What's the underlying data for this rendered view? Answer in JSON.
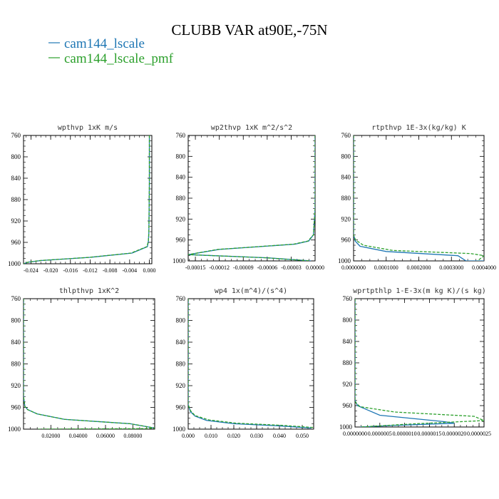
{
  "figure": {
    "title": "CLUBB VAR at90E,-75N"
  },
  "legend": [
    {
      "name": "cam144_lscale",
      "color": "#1f77b4",
      "dash": false
    },
    {
      "name": "cam144_lscale_pmf",
      "color": "#2ca02c",
      "dash": true
    }
  ],
  "chart_data": [
    {
      "type": "line",
      "title": "wpthvp   1xK m/s",
      "xlim": [
        -0.0255,
        0.0005
      ],
      "ylim": [
        760,
        1000
      ],
      "y_inverted": true,
      "xticks": [
        -0.024,
        -0.02,
        -0.016,
        -0.012,
        -0.008,
        -0.004,
        0.0
      ],
      "xtick_labels": [
        "-0.024",
        "-0.020",
        "-0.016",
        "-0.012",
        "-0.008",
        "-0.004",
        "0.000"
      ],
      "yticks": [
        760,
        800,
        840,
        880,
        920,
        960,
        1000
      ],
      "ytick_labels": [
        "760",
        "800",
        "840",
        "880",
        "920",
        "960",
        "1000"
      ],
      "series": [
        {
          "name": "cam144_lscale",
          "x": [
            0.0,
            0.0,
            -0.0001,
            -0.0002,
            -0.0004,
            -0.0035,
            -0.012,
            -0.022,
            -0.0245,
            -0.0255
          ],
          "y": [
            760,
            850,
            940,
            958,
            968,
            980,
            988,
            994,
            997,
            1000
          ]
        },
        {
          "name": "cam144_lscale_pmf",
          "x": [
            0.0,
            0.0,
            -0.0001,
            -0.0002,
            -0.0005,
            -0.0037,
            -0.0122,
            -0.0222,
            -0.0246,
            -0.0255
          ],
          "y": [
            760,
            850,
            940,
            958,
            968,
            980,
            988,
            994,
            997,
            1000
          ]
        }
      ]
    },
    {
      "type": "line",
      "title": "wp2thvp   1xK m^2/s^2",
      "xlim": [
        -0.000159,
        0.0
      ],
      "ylim": [
        760,
        1000
      ],
      "y_inverted": true,
      "xticks": [
        -0.00015,
        -0.00012,
        -9e-05,
        -6e-05,
        -3e-05,
        0.0
      ],
      "xtick_labels": [
        "-0.00015",
        "-0.00012",
        "-0.00009",
        "-0.00006",
        "-0.00003",
        "0.00000"
      ],
      "yticks": [
        760,
        800,
        840,
        880,
        920,
        960,
        1000
      ],
      "ytick_labels": [
        "760",
        "800",
        "840",
        "880",
        "920",
        "960",
        "1000"
      ],
      "series": [
        {
          "name": "cam144_lscale",
          "x": [
            0.0,
            0.0,
            -2e-06,
            -8e-06,
            -2.5e-05,
            -0.00012,
            -0.000159,
            -6e-05,
            -5e-06
          ],
          "y": [
            760,
            900,
            950,
            962,
            968,
            978,
            988,
            994,
            1000
          ]
        },
        {
          "name": "cam144_lscale_pmf",
          "x": [
            0.0,
            0.0,
            -2e-06,
            -9e-06,
            -2.7e-05,
            -0.000122,
            -0.000159,
            -6.2e-05,
            -6e-06
          ],
          "y": [
            760,
            900,
            950,
            962,
            968,
            978,
            988,
            994,
            1000
          ]
        }
      ]
    },
    {
      "type": "line",
      "title": "rtpthvp   1E-3x(kg/kg) K",
      "xlim": [
        0.0,
        0.0004
      ],
      "ylim": [
        760,
        1000
      ],
      "y_inverted": true,
      "xticks": [
        0.0,
        0.0001,
        0.0002,
        0.0003,
        0.0004
      ],
      "xtick_labels": [
        "0.0000000",
        "0.0001000",
        "0.0002000",
        "0.0003000",
        "0.0004000"
      ],
      "yticks": [
        760,
        800,
        840,
        880,
        920,
        960,
        1000
      ],
      "ytick_labels": [
        "760",
        "800",
        "840",
        "880",
        "920",
        "960",
        "1000"
      ],
      "series": [
        {
          "name": "cam144_lscale",
          "x": [
            0.0,
            0.0,
            5e-06,
            2e-05,
            0.0001,
            0.00032,
            0.000345,
            0.0004
          ],
          "y": [
            760,
            950,
            962,
            972,
            982,
            990,
            1000,
            1000
          ]
        },
        {
          "name": "cam144_lscale_pmf",
          "x": [
            0.0,
            0.0,
            6e-06,
            3e-05,
            0.00012,
            0.00036,
            0.0004,
            0.00038
          ],
          "y": [
            760,
            950,
            960,
            970,
            980,
            986,
            990,
            1000
          ]
        }
      ]
    },
    {
      "type": "line",
      "title": "thlpthvp   1xK^2",
      "xlim": [
        0.0,
        0.096
      ],
      "ylim": [
        760,
        1000
      ],
      "y_inverted": true,
      "xticks": [
        0.02,
        0.04,
        0.06,
        0.08
      ],
      "xtick_labels": [
        "0.02000",
        "0.04000",
        "0.06000",
        "0.08000"
      ],
      "yticks": [
        760,
        800,
        840,
        880,
        920,
        960,
        1000
      ],
      "ytick_labels": [
        "760",
        "800",
        "840",
        "880",
        "920",
        "960",
        "1000"
      ],
      "series": [
        {
          "name": "cam144_lscale",
          "x": [
            0.0,
            0.0,
            0.001,
            0.003,
            0.01,
            0.03,
            0.078,
            0.096
          ],
          "y": [
            760,
            940,
            958,
            964,
            972,
            982,
            990,
            998
          ]
        },
        {
          "name": "cam144_lscale_pmf",
          "x": [
            0.0,
            0.0,
            0.001,
            0.003,
            0.01,
            0.03,
            0.078,
            0.096,
            0.09,
            0.05,
            0.01
          ],
          "y": [
            760,
            940,
            958,
            964,
            972,
            982,
            990,
            998,
            999,
            999.5,
            1000
          ]
        }
      ]
    },
    {
      "type": "line",
      "title": "wp4   1x(m^4)/(s^4)",
      "xlim": [
        0.0,
        0.055
      ],
      "ylim": [
        760,
        1000
      ],
      "y_inverted": true,
      "xticks": [
        0.0,
        0.01,
        0.02,
        0.03,
        0.04,
        0.05
      ],
      "xtick_labels": [
        "0.000",
        "0.010",
        "0.020",
        "0.030",
        "0.040",
        "0.050"
      ],
      "yticks": [
        760,
        800,
        840,
        880,
        920,
        960,
        1000
      ],
      "ytick_labels": [
        "760",
        "800",
        "840",
        "880",
        "920",
        "960",
        "1000"
      ],
      "series": [
        {
          "name": "cam144_lscale",
          "x": [
            0.0,
            0.0,
            0.001,
            0.003,
            0.008,
            0.02,
            0.04,
            0.054
          ],
          "y": [
            760,
            955,
            968,
            976,
            984,
            990,
            994,
            998
          ]
        },
        {
          "name": "cam144_lscale_pmf",
          "x": [
            0.0,
            0.0,
            0.001,
            0.003,
            0.009,
            0.021,
            0.041,
            0.055
          ],
          "y": [
            760,
            955,
            966,
            975,
            983,
            989,
            993,
            997
          ]
        }
      ]
    },
    {
      "type": "line",
      "title": "wprtpthlp   1-E-3x(m kg K)/(s kg)",
      "xlim": [
        0.0,
        2.6e-06
      ],
      "ylim": [
        760,
        1000
      ],
      "y_inverted": true,
      "xticks": [
        0.0,
        5e-07,
        1e-06,
        1.5e-06,
        2e-06,
        2.5e-06
      ],
      "xtick_labels": [
        "0.0000000",
        "0.0000005",
        "0.0000010",
        "0.0000015",
        "0.0000020",
        "0.0000025"
      ],
      "yticks": [
        760,
        800,
        840,
        880,
        920,
        960,
        1000
      ],
      "ytick_labels": [
        "760",
        "800",
        "840",
        "880",
        "920",
        "960",
        "1000"
      ],
      "series": [
        {
          "name": "cam144_lscale",
          "x": [
            0.0,
            0.0,
            5e-08,
            5e-07,
            1.8e-06,
            2e-06,
            8e-07,
            1e-07
          ],
          "y": [
            760,
            950,
            960,
            978,
            990,
            993,
            997,
            1000
          ]
        },
        {
          "name": "cam144_lscale_pmf",
          "x": [
            0.0,
            0.0,
            2e-08,
            1e-07,
            8e-07,
            2.4e-06,
            2.6e-06,
            1.2e-06,
            1e-07
          ],
          "y": [
            760,
            950,
            955,
            962,
            972,
            980,
            988,
            994,
            1000
          ]
        }
      ]
    }
  ]
}
